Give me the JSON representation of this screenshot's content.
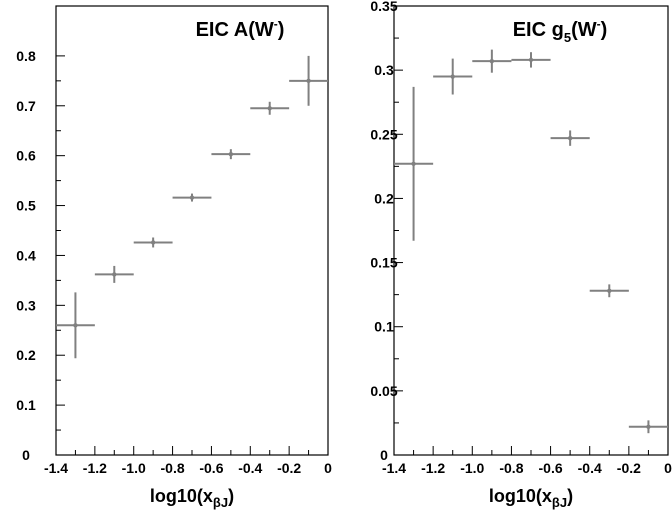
{
  "chart_data": [
    {
      "type": "scatter",
      "title": "EIC A(W⁻)",
      "title_parts": {
        "main": "EIC A(W",
        "sup": "-",
        "close": ")"
      },
      "xlabel": "log10(xβJ)",
      "xlabel_parts": {
        "main": "log10(x",
        "sub": "βJ",
        "close": ")"
      },
      "ylabel": "",
      "xlim": [
        -1.4,
        0
      ],
      "ylim": [
        0,
        0.9
      ],
      "x_ticks": [
        -1.4,
        -1.2,
        -1.0,
        -0.8,
        -0.6,
        -0.4,
        -0.2,
        0
      ],
      "x_tick_labels": [
        "-1.4",
        "-1.2",
        "-1.0",
        "-0.8",
        "-0.6",
        "-0.4",
        "-0.2",
        "0"
      ],
      "y_ticks": [
        0,
        0.1,
        0.2,
        0.3,
        0.4,
        0.5,
        0.6,
        0.7,
        0.8
      ],
      "y_tick_labels": [
        "0",
        "0.1",
        "0.2",
        "0.3",
        "0.4",
        "0.5",
        "0.6",
        "0.7",
        "0.8"
      ],
      "grid": false,
      "points": [
        {
          "x": -1.3,
          "x_err": 0.1,
          "y": 0.26,
          "y_err": 0.066
        },
        {
          "x": -1.1,
          "x_err": 0.1,
          "y": 0.362,
          "y_err": 0.017
        },
        {
          "x": -0.9,
          "x_err": 0.1,
          "y": 0.426,
          "y_err": 0.01
        },
        {
          "x": -0.7,
          "x_err": 0.1,
          "y": 0.516,
          "y_err": 0.008
        },
        {
          "x": -0.5,
          "x_err": 0.1,
          "y": 0.603,
          "y_err": 0.01
        },
        {
          "x": -0.3,
          "x_err": 0.1,
          "y": 0.695,
          "y_err": 0.013
        },
        {
          "x": -0.1,
          "x_err": 0.1,
          "y": 0.75,
          "y_err": 0.05
        }
      ]
    },
    {
      "type": "scatter",
      "title": "EIC g5(W⁻)",
      "title_parts": {
        "main": "EIC g",
        "sub": "5",
        "mid": "(W",
        "sup": "-",
        "close": ")"
      },
      "xlabel": "log10(xβJ)",
      "xlabel_parts": {
        "main": "log10(x",
        "sub": "βJ",
        "close": ")"
      },
      "ylabel": "",
      "xlim": [
        -1.4,
        0
      ],
      "ylim": [
        0,
        0.35
      ],
      "x_ticks": [
        -1.4,
        -1.2,
        -1.0,
        -0.8,
        -0.6,
        -0.4,
        -0.2,
        0
      ],
      "x_tick_labels": [
        "-1.4",
        "-1.2",
        "-1.0",
        "-0.8",
        "-0.6",
        "-0.4",
        "-0.2",
        "0"
      ],
      "y_ticks": [
        0,
        0.05,
        0.1,
        0.15,
        0.2,
        0.25,
        0.3,
        0.35
      ],
      "y_tick_labels": [
        "0",
        "0.05",
        "0.1",
        "0.15",
        "0.2",
        "0.25",
        "0.3",
        "0.35"
      ],
      "grid": false,
      "points": [
        {
          "x": -1.3,
          "x_err": 0.1,
          "y": 0.227,
          "y_err": 0.06
        },
        {
          "x": -1.1,
          "x_err": 0.1,
          "y": 0.295,
          "y_err": 0.014
        },
        {
          "x": -0.9,
          "x_err": 0.1,
          "y": 0.307,
          "y_err": 0.009
        },
        {
          "x": -0.7,
          "x_err": 0.1,
          "y": 0.308,
          "y_err": 0.006
        },
        {
          "x": -0.5,
          "x_err": 0.1,
          "y": 0.247,
          "y_err": 0.006
        },
        {
          "x": -0.3,
          "x_err": 0.1,
          "y": 0.128,
          "y_err": 0.005
        },
        {
          "x": -0.1,
          "x_err": 0.1,
          "y": 0.022,
          "y_err": 0.005
        }
      ]
    }
  ],
  "style": {
    "marker_color": "#808080",
    "frame_color": "#000000",
    "background": "#ffffff"
  }
}
